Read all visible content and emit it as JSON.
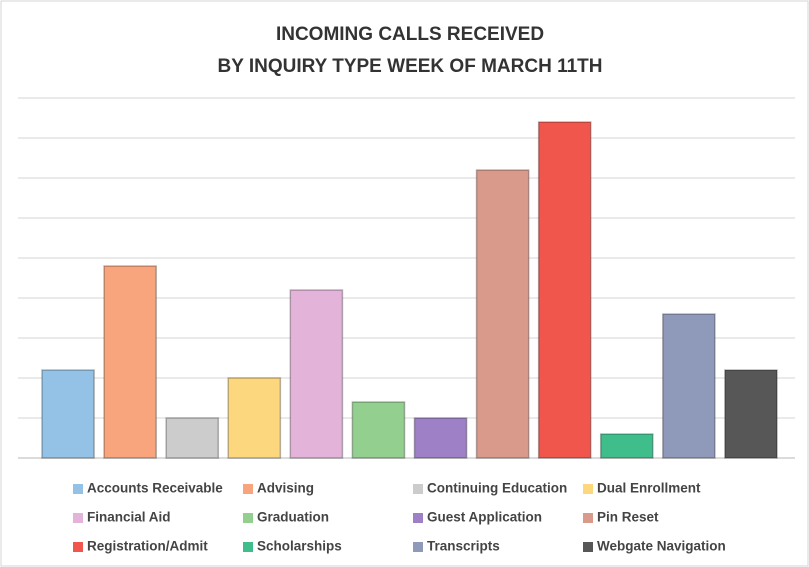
{
  "chart_data": {
    "type": "bar",
    "title": [
      "INCOMING CALLS RECEIVED",
      "BY INQUIRY TYPE WEEK OF MARCH 11TH"
    ],
    "categories": [
      "Accounts Receivable",
      "Advising",
      "Continuing Education",
      "Dual Enrollment",
      "Financial Aid",
      "Graduation",
      "Guest Application",
      "Pin Reset",
      "Registration/Admit",
      "Scholarships",
      "Transcripts",
      "Webgate Navigation"
    ],
    "values": [
      2.2,
      4.8,
      1.0,
      2.0,
      4.2,
      1.4,
      1.0,
      7.2,
      8.4,
      0.6,
      3.6,
      2.2
    ],
    "colors": [
      "#93c2e6",
      "#f8a47c",
      "#cccccc",
      "#fdd77e",
      "#e3b3da",
      "#93cf8e",
      "#9d80c6",
      "#d99a8b",
      "#f0564b",
      "#3fbd8b",
      "#8f99ba",
      "#575757"
    ],
    "ylim": [
      0,
      9
    ],
    "yticks": [
      0,
      1,
      2,
      3,
      4,
      5,
      6,
      7,
      8,
      9
    ],
    "grid": true
  }
}
